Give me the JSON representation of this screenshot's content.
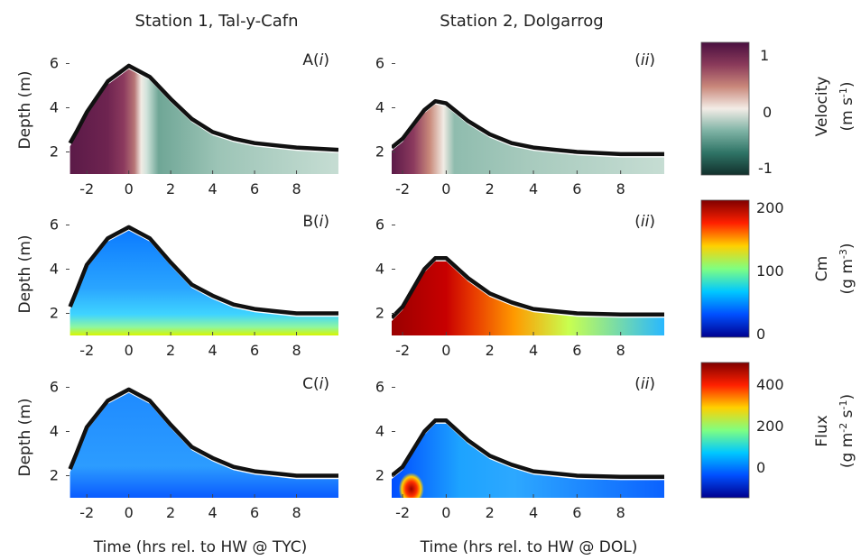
{
  "columns": {
    "station1": "Station 1, Tal-y-Cafn",
    "station2": "Station 2, Dolgarrog"
  },
  "xlabels": {
    "station1": "Time (hrs rel. to HW @ TYC)",
    "station2": "Time (hrs rel. to HW @ DOL)"
  },
  "ylabel_text": "Depth (m)",
  "x_ticks": [
    "-2",
    "0",
    "2",
    "4",
    "6",
    "8"
  ],
  "panel_labels": {
    "A_prefix": "A(",
    "A_i": "i",
    "A_suffix": ")",
    "B_prefix": "B(",
    "B_i": "i",
    "B_suffix": ")",
    "C_prefix": "C(",
    "C_i": "i",
    "C_suffix": ")",
    "open": "(",
    "ii": "ii",
    "close": ")"
  },
  "colorbars": {
    "velocity": {
      "ticks": [
        "1",
        "0",
        "-1"
      ],
      "title": "Velocity",
      "unit_prefix": "(m s",
      "unit_sup": "-1",
      "unit_suffix": ")",
      "colors": [
        "#4a1040",
        "#8a3a5a",
        "#c9877a",
        "#f3ece6",
        "#7fb3a5",
        "#2f7466",
        "#12302c"
      ]
    },
    "cm": {
      "ticks": [
        "200",
        "100",
        "0"
      ],
      "title": "Cm",
      "unit_prefix": "(g m",
      "unit_sup": "-3",
      "unit_suffix": ")",
      "colors": [
        "#7f0000",
        "#ff2000",
        "#ffd000",
        "#80ff80",
        "#00c8ff",
        "#0050ff",
        "#00008f"
      ]
    },
    "flux": {
      "ticks": [
        "400",
        "200",
        "0"
      ],
      "title": "Flux",
      "unit_prefix": "(g m",
      "unit_sup1": "-2",
      "unit_mid": " s",
      "unit_sup2": "-1",
      "unit_suffix": ")",
      "colors": [
        "#7f0000",
        "#ff2000",
        "#ffd000",
        "#80ff80",
        "#00c8ff",
        "#0050ff",
        "#00008f"
      ]
    }
  },
  "chart_data": [
    {
      "panel": "A(i)",
      "type": "heatmap",
      "quantity": "Velocity",
      "xlim": [
        -3,
        10
      ],
      "ylim": [
        1,
        7
      ],
      "y_ticks": [
        2,
        4,
        6
      ],
      "surface_depth": {
        "x": [
          -2.8,
          -2.5,
          -2,
          -1,
          0,
          1,
          2,
          3,
          4,
          5,
          6,
          7,
          8,
          10
        ],
        "y": [
          2.4,
          2.9,
          3.8,
          5.2,
          5.9,
          5.4,
          4.4,
          3.5,
          2.9,
          2.6,
          2.4,
          2.3,
          2.2,
          2.1
        ]
      }
    },
    {
      "panel": "A(ii)",
      "type": "heatmap",
      "quantity": "Velocity",
      "xlim": [
        -2.5,
        10
      ],
      "ylim": [
        1,
        7
      ],
      "y_ticks": [
        2,
        4,
        6
      ],
      "surface_depth": {
        "x": [
          -2.5,
          -2,
          -1,
          -0.5,
          0,
          1,
          2,
          3,
          4,
          5,
          6,
          8,
          10
        ],
        "y": [
          2.2,
          2.6,
          3.9,
          4.3,
          4.2,
          3.4,
          2.8,
          2.4,
          2.2,
          2.1,
          2.0,
          1.9,
          1.9
        ]
      }
    },
    {
      "panel": "B(i)",
      "type": "heatmap",
      "quantity": "Cm",
      "xlim": [
        -3,
        10
      ],
      "ylim": [
        1,
        7
      ],
      "y_ticks": [
        2,
        4,
        6
      ],
      "surface_depth": {
        "x": [
          -2.8,
          -2.5,
          -2,
          -1,
          0,
          1,
          2,
          3,
          4,
          5,
          6,
          7,
          8,
          10
        ],
        "y": [
          2.3,
          3.0,
          4.2,
          5.4,
          5.9,
          5.4,
          4.3,
          3.3,
          2.8,
          2.4,
          2.2,
          2.1,
          2.0,
          2.0
        ]
      }
    },
    {
      "panel": "B(ii)",
      "type": "heatmap",
      "quantity": "Cm",
      "xlim": [
        -2.5,
        10
      ],
      "ylim": [
        1,
        7
      ],
      "y_ticks": [
        2,
        4,
        6
      ],
      "surface_depth": {
        "x": [
          -2.5,
          -2,
          -1,
          -0.5,
          0,
          1,
          2,
          3,
          4,
          5,
          6,
          8,
          10
        ],
        "y": [
          1.8,
          2.3,
          4.0,
          4.5,
          4.5,
          3.6,
          2.9,
          2.5,
          2.2,
          2.1,
          2.0,
          1.95,
          1.95
        ]
      }
    },
    {
      "panel": "C(i)",
      "type": "heatmap",
      "quantity": "Flux",
      "xlim": [
        -3,
        10
      ],
      "ylim": [
        1,
        7
      ],
      "y_ticks": [
        2,
        4,
        6
      ],
      "surface_depth": {
        "x": [
          -2.8,
          -2.5,
          -2,
          -1,
          0,
          1,
          2,
          3,
          4,
          5,
          6,
          7,
          8,
          10
        ],
        "y": [
          2.3,
          3.0,
          4.2,
          5.4,
          5.9,
          5.4,
          4.3,
          3.3,
          2.8,
          2.4,
          2.2,
          2.1,
          2.0,
          2.0
        ]
      }
    },
    {
      "panel": "C(ii)",
      "type": "heatmap",
      "quantity": "Flux",
      "xlim": [
        -2.5,
        10
      ],
      "ylim": [
        1,
        7
      ],
      "y_ticks": [
        2,
        4,
        6
      ],
      "surface_depth": {
        "x": [
          -2.5,
          -2,
          -1,
          -0.5,
          0,
          1,
          2,
          3,
          4,
          5,
          6,
          8,
          10
        ],
        "y": [
          2.0,
          2.4,
          4.0,
          4.5,
          4.5,
          3.6,
          2.9,
          2.5,
          2.2,
          2.1,
          2.0,
          1.95,
          1.95
        ]
      }
    }
  ]
}
